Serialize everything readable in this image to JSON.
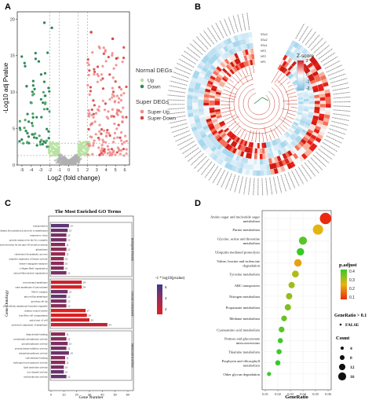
{
  "panels": {
    "A": {
      "label": "A"
    },
    "B": {
      "label": "B"
    },
    "C": {
      "label": "C"
    },
    "D": {
      "label": "D"
    }
  },
  "colors": {
    "normal_up": "#b7e3a0",
    "normal_down": "#2e8b57",
    "super_up": "#f28b8b",
    "super_down": "#d64545",
    "ns": "#b0b0b0",
    "heat_high": "#e8201a",
    "heat_low": "#a8d8ee"
  },
  "chart_data": [
    {
      "panel": "A",
      "type": "scatter",
      "title": "",
      "xlabel": "Log2 (fold change)",
      "ylabel": "-Log10 adj Pvalue",
      "xlim": [
        -5.5,
        6.5
      ],
      "ylim": [
        0,
        21
      ],
      "x_ticks": [
        "-5",
        "-4",
        "-3",
        "-2",
        "-1",
        "0",
        "1",
        "2",
        "3",
        "4",
        "5",
        "6"
      ],
      "y_ticks": [
        "0",
        "5",
        "10",
        "15",
        "20"
      ],
      "legend": {
        "normal_title": "Normal DEGs",
        "normal_items": [
          "Up",
          "Down"
        ],
        "super_title": "Super DEGs",
        "super_items": [
          "Super-Up",
          "Super-Down"
        ]
      }
    },
    {
      "panel": "B",
      "type": "heatmap",
      "title": "",
      "legend_title": "Z-score",
      "legend_ticks": [
        "2",
        "1",
        "0",
        "-1",
        "-2"
      ],
      "sample_labels": [
        "NF1",
        "NF2",
        "NF3",
        "SSc1",
        "SSc2",
        "SSc3"
      ]
    },
    {
      "panel": "C",
      "type": "bar",
      "title": "The Most Enriched GO Terms",
      "xlabel": "Gene Number",
      "ylabel": "Gene Ontology",
      "legend_title": "-1 * log10(pvalue)",
      "legend_ticks": [
        "6",
        "4",
        "2"
      ],
      "x_ticks": [
        "0",
        "10",
        "20",
        "30",
        "40",
        "50",
        "60"
      ],
      "xlim": [
        0,
        60
      ],
      "groups": [
        "Biological Process",
        "Cellular Component",
        "Molecular Function"
      ],
      "categories": [
        "transportation",
        "cytoplasmic & translation (cytosolic to membrane)",
        "response to virus",
        "protein transport by the Sec complex",
        "protein secretion by the type III secretion system",
        "glutathione",
        "cholesterol biosynthetic process",
        "negative regulation of kinase activity",
        "lysine-conjugated transport",
        "collagen fibril organization",
        "extracellular matrix organization",
        "peroxisomal membrane",
        "outer membrane of peroxisome",
        "NELF complex",
        "microvillus membrane",
        "growing cell tip",
        "extracellular membrane-bounded organelle",
        "clathrin-coated vesicle",
        "lens fiber cell compartment",
        "apical part of cell",
        "anchored component of membrane",
        "dinucleotide binding",
        "cytoplasmic phosphatase activity",
        "pyrophosphatase activity",
        "protein kinase inhibitor activity",
        "phosphotransferase activity",
        "carbohydrate binding",
        "hydrogen ion transporter activity",
        "lipid hydrolase activity",
        "ion channel activity",
        "oxidoreductase activity"
      ],
      "values": [
        14,
        13,
        12,
        12,
        11,
        12,
        11,
        10,
        10,
        10,
        12,
        24,
        24,
        13,
        12,
        12,
        12,
        27,
        28,
        30,
        44,
        11,
        12,
        13,
        12,
        14,
        11,
        11,
        10,
        10,
        12
      ],
      "pvalue_level": [
        5.2,
        4.8,
        4.4,
        4.6,
        4.2,
        4.0,
        3.8,
        3.9,
        4.1,
        4.3,
        4.5,
        2.5,
        2.3,
        4.7,
        4.9,
        4.4,
        4.2,
        2.0,
        2.2,
        2.4,
        2.8,
        4.0,
        4.2,
        4.4,
        4.6,
        4.8,
        4.3,
        4.1,
        4.5,
        4.9,
        5.0
      ]
    },
    {
      "panel": "D",
      "type": "scatter",
      "title": "",
      "xlabel": "GeneRatio",
      "ylabel": "",
      "xlim": [
        0.01,
        0.06
      ],
      "x_ticks": [
        "0.01",
        "0.02",
        "0.03",
        "0.04",
        "0.05",
        "0.06"
      ],
      "categories": [
        "Amino sugar and nucleotide sugar metabolism",
        "Purine metabolism",
        "Glycine, serine and threonine metabolism",
        "Ubiquitin mediated proteolysis",
        "Valine, leucine and isoleucine degradation",
        "Tyrosine metabolism",
        "ABC transporters",
        "Nitrogen metabolism",
        "Propanoate metabolism",
        "Methane metabolism",
        "Cyanoamino acid metabolism",
        "Pentose and glucuronate interconversions",
        "Thiamine metabolism",
        "Porphyrin and chlorophyll metabolism",
        "Other glycan degradation"
      ],
      "gene_ratio": [
        0.058,
        0.052,
        0.04,
        0.038,
        0.036,
        0.034,
        0.031,
        0.029,
        0.028,
        0.025,
        0.023,
        0.022,
        0.021,
        0.02,
        0.013
      ],
      "p_adjust": [
        0.08,
        0.28,
        0.42,
        0.45,
        0.25,
        0.33,
        0.35,
        0.36,
        0.38,
        0.4,
        0.42,
        0.44,
        0.44,
        0.45,
        0.45
      ],
      "count": [
        16,
        14,
        10,
        9,
        9,
        8,
        7,
        7,
        7,
        6,
        6,
        5,
        5,
        5,
        3
      ],
      "legend": {
        "padjust_title": "p.adjust",
        "padjust_ticks": [
          "0.4",
          "0.3",
          "0.2",
          "0.1"
        ],
        "generatio_title": "GeneRatio > 0.1",
        "generatio_item": "FALSE",
        "count_title": "Count",
        "count_items": [
          "4",
          "8",
          "12",
          "16"
        ]
      }
    }
  ]
}
